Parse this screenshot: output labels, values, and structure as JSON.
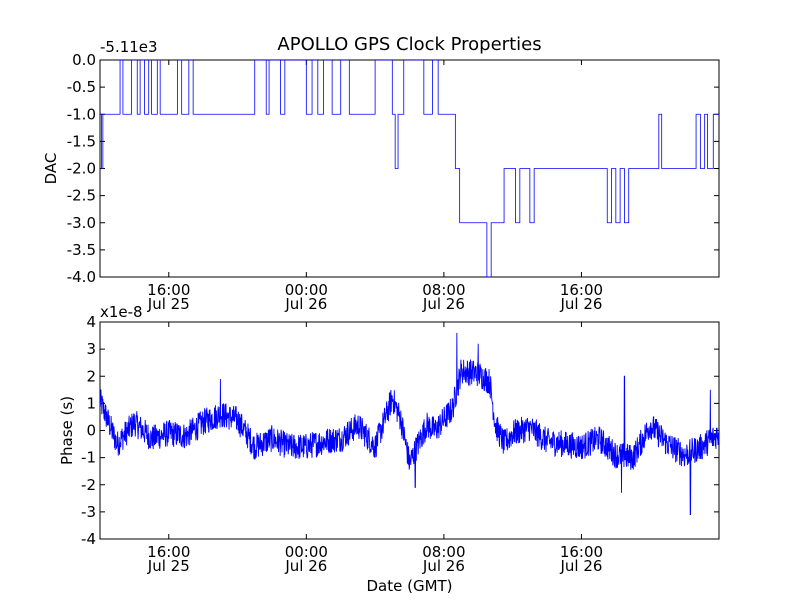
{
  "chart_data": [
    {
      "type": "line",
      "title": "APOLLO GPS Clock Properties",
      "ylabel": "DAC",
      "xlabel": "",
      "offset_label": "-5.11e3",
      "ylim": [
        -4.0,
        0.0
      ],
      "yticks": [
        "0.0",
        "-0.5",
        "-1.0",
        "-1.5",
        "-2.0",
        "-2.5",
        "-3.0",
        "-3.5",
        "-4.0"
      ],
      "xlim_hours_from_jul25_0000": [
        12.0,
        48.0
      ],
      "xticks": [
        {
          "time": "16:00",
          "date": "Jul 25"
        },
        {
          "time": "00:00",
          "date": "Jul 26"
        },
        {
          "time": "08:00",
          "date": "Jul 26"
        },
        {
          "time": "16:00",
          "date": "Jul 26"
        }
      ],
      "series": [
        {
          "color": "#0000ff",
          "points": [
            [
              "Jul 25 12:00",
              -1.0
            ],
            [
              "Jul 25 12:05",
              -2.0
            ],
            [
              "Jul 25 12:10",
              -1.0
            ],
            [
              "Jul 25 13:10",
              0.0
            ],
            [
              "Jul 25 13:20",
              -1.0
            ],
            [
              "Jul 25 13:50",
              0.0
            ],
            [
              "Jul 25 14:10",
              -1.0
            ],
            [
              "Jul 25 14:20",
              0.0
            ],
            [
              "Jul 25 14:35",
              -1.0
            ],
            [
              "Jul 25 14:50",
              0.0
            ],
            [
              "Jul 25 15:00",
              -1.0
            ],
            [
              "Jul 25 15:20",
              0.0
            ],
            [
              "Jul 25 15:30",
              -1.0
            ],
            [
              "Jul 25 16:30",
              0.0
            ],
            [
              "Jul 25 16:45",
              -1.0
            ],
            [
              "Jul 25 17:10",
              0.0
            ],
            [
              "Jul 25 17:25",
              -1.0
            ],
            [
              "Jul 25 21:00",
              0.0
            ],
            [
              "Jul 25 21:40",
              -1.0
            ],
            [
              "Jul 25 21:50",
              0.0
            ],
            [
              "Jul 25 22:30",
              -1.0
            ],
            [
              "Jul 25 22:45",
              0.0
            ],
            [
              "Jul 26 00:00",
              -1.0
            ],
            [
              "Jul 26 00:20",
              0.0
            ],
            [
              "Jul 26 00:40",
              -1.0
            ],
            [
              "Jul 26 01:00",
              0.0
            ],
            [
              "Jul 26 01:30",
              -1.0
            ],
            [
              "Jul 26 02:00",
              0.0
            ],
            [
              "Jul 26 02:30",
              -1.0
            ],
            [
              "Jul 26 04:00",
              0.0
            ],
            [
              "Jul 26 05:00",
              -1.0
            ],
            [
              "Jul 26 05:10",
              -2.0
            ],
            [
              "Jul 26 05:20",
              -1.0
            ],
            [
              "Jul 26 05:40",
              0.0
            ],
            [
              "Jul 26 06:50",
              -1.0
            ],
            [
              "Jul 26 07:20",
              0.0
            ],
            [
              "Jul 26 07:40",
              -1.0
            ],
            [
              "Jul 26 08:40",
              -2.0
            ],
            [
              "Jul 26 08:55",
              -3.0
            ],
            [
              "Jul 26 10:30",
              -4.0
            ],
            [
              "Jul 26 10:45",
              -3.0
            ],
            [
              "Jul 26 11:30",
              -2.0
            ],
            [
              "Jul 26 12:10",
              -3.0
            ],
            [
              "Jul 26 12:25",
              -2.0
            ],
            [
              "Jul 26 13:00",
              -3.0
            ],
            [
              "Jul 26 13:15",
              -2.0
            ],
            [
              "Jul 26 17:30",
              -3.0
            ],
            [
              "Jul 26 17:45",
              -2.0
            ],
            [
              "Jul 26 18:00",
              -3.0
            ],
            [
              "Jul 26 18:15",
              -2.0
            ],
            [
              "Jul 26 18:30",
              -3.0
            ],
            [
              "Jul 26 18:45",
              -2.0
            ],
            [
              "Jul 26 20:30",
              -1.0
            ],
            [
              "Jul 26 20:40",
              -2.0
            ],
            [
              "Jul 26 22:40",
              -1.0
            ],
            [
              "Jul 26 22:55",
              -2.0
            ],
            [
              "Jul 26 23:10",
              -1.0
            ],
            [
              "Jul 26 23:20",
              -2.0
            ],
            [
              "Jul 26 23:40",
              -1.0
            ],
            [
              "Jul 27 00:00",
              -1.0
            ]
          ]
        }
      ]
    },
    {
      "type": "line",
      "title": "",
      "ylabel": "Phase (s)",
      "xlabel": "Date (GMT)",
      "offset_label": "x1e-8",
      "ylim": [
        -4,
        4
      ],
      "yticks": [
        "4",
        "3",
        "2",
        "1",
        "0",
        "-1",
        "-2",
        "-3",
        "-4"
      ],
      "xlim_hours_from_jul25_0000": [
        12.0,
        48.0
      ],
      "xticks": [
        {
          "time": "16:00",
          "date": "Jul 25"
        },
        {
          "time": "00:00",
          "date": "Jul 26"
        },
        {
          "time": "08:00",
          "date": "Jul 26"
        },
        {
          "time": "16:00",
          "date": "Jul 26"
        }
      ],
      "series": [
        {
          "color": "#0000ff",
          "trend_points": [
            [
              "Jul 25 12:00",
              1.1
            ],
            [
              "Jul 25 13:00",
              -0.5
            ],
            [
              "Jul 25 14:00",
              0.3
            ],
            [
              "Jul 25 15:00",
              -0.3
            ],
            [
              "Jul 25 16:00",
              -0.1
            ],
            [
              "Jul 25 17:00",
              -0.2
            ],
            [
              "Jul 25 18:00",
              0.3
            ],
            [
              "Jul 25 19:00",
              0.6
            ],
            [
              "Jul 25 20:00",
              0.4
            ],
            [
              "Jul 25 21:00",
              -0.6
            ],
            [
              "Jul 25 22:00",
              -0.3
            ],
            [
              "Jul 25 23:00",
              -0.6
            ],
            [
              "Jul 26 00:00",
              -0.6
            ],
            [
              "Jul 26 01:00",
              -0.4
            ],
            [
              "Jul 26 02:00",
              -0.3
            ],
            [
              "Jul 26 03:00",
              0.2
            ],
            [
              "Jul 26 04:00",
              -0.6
            ],
            [
              "Jul 26 05:00",
              1.2
            ],
            [
              "Jul 26 05:30",
              0.4
            ],
            [
              "Jul 26 06:00",
              -1.2
            ],
            [
              "Jul 26 06:30",
              -0.5
            ],
            [
              "Jul 26 07:00",
              0.2
            ],
            [
              "Jul 26 07:30",
              0.0
            ],
            [
              "Jul 26 08:30",
              0.8
            ],
            [
              "Jul 26 09:00",
              2.2
            ],
            [
              "Jul 26 10:00",
              2.1
            ],
            [
              "Jul 26 10:40",
              1.8
            ],
            [
              "Jul 26 11:00",
              0.2
            ],
            [
              "Jul 26 11:30",
              -0.5
            ],
            [
              "Jul 26 12:00",
              -0.1
            ],
            [
              "Jul 26 13:00",
              0.1
            ],
            [
              "Jul 26 14:00",
              -0.4
            ],
            [
              "Jul 26 15:00",
              -0.5
            ],
            [
              "Jul 26 16:00",
              -0.6
            ],
            [
              "Jul 26 17:00",
              -0.3
            ],
            [
              "Jul 26 18:00",
              -0.9
            ],
            [
              "Jul 26 19:00",
              -1.0
            ],
            [
              "Jul 26 20:00",
              0.2
            ],
            [
              "Jul 26 21:00",
              -0.5
            ],
            [
              "Jul 26 22:00",
              -0.9
            ],
            [
              "Jul 26 23:00",
              -0.6
            ],
            [
              "Jul 27 00:00",
              -0.1
            ]
          ],
          "noise_amplitude": 0.5,
          "spikes": [
            [
              "Jul 25 19:00",
              1.9
            ],
            [
              "Jul 26 08:45",
              3.6
            ],
            [
              "Jul 26 10:00",
              3.2
            ],
            [
              "Jul 26 18:30",
              2.0
            ],
            [
              "Jul 26 18:20",
              -2.3
            ],
            [
              "Jul 26 22:20",
              -3.1
            ],
            [
              "Jul 26 06:20",
              -2.1
            ],
            [
              "Jul 26 23:30",
              1.5
            ]
          ]
        }
      ]
    }
  ]
}
